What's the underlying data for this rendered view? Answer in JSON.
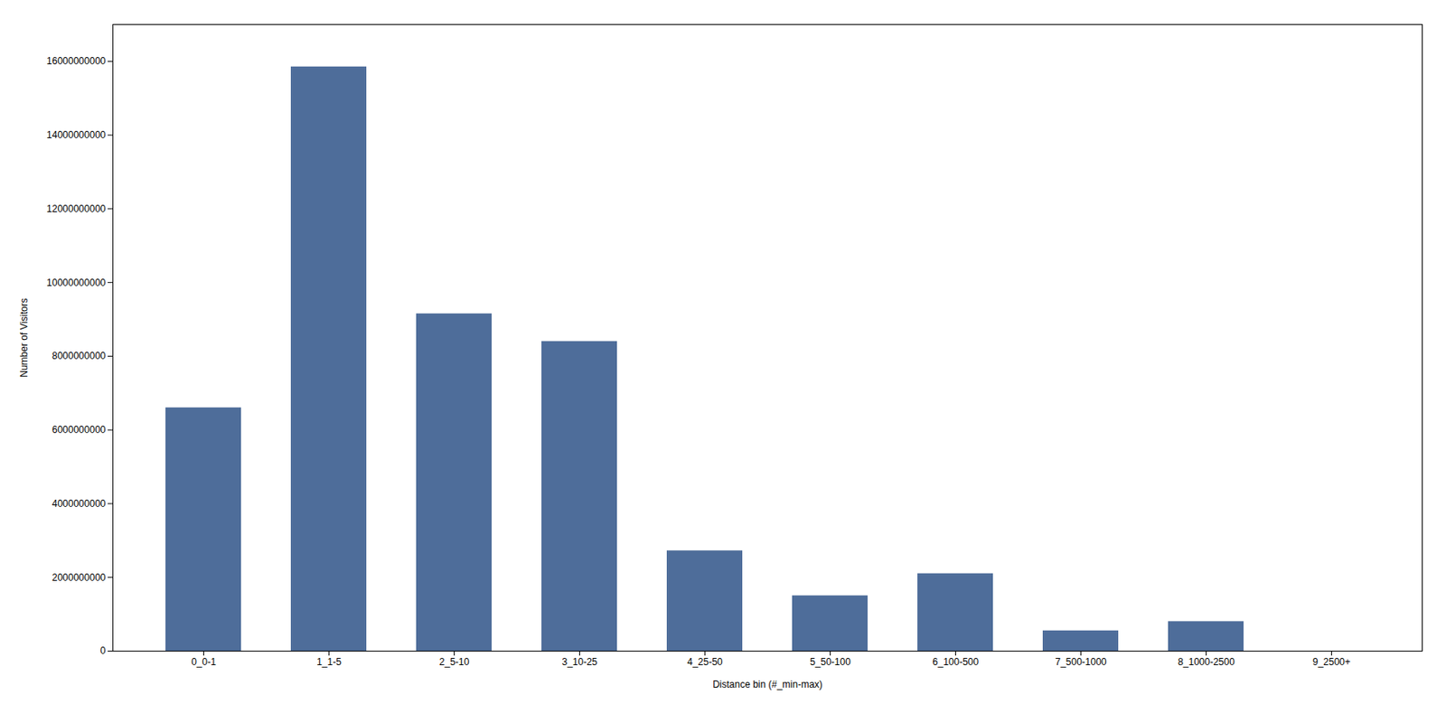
{
  "chart_data": {
    "type": "bar",
    "categories": [
      "0_0-1",
      "1_1-5",
      "2_5-10",
      "3_10-25",
      "4_25-50",
      "5_50-100",
      "6_100-500",
      "7_500-1000",
      "8_1000-2500",
      "9_2500+"
    ],
    "values": [
      6600000000,
      15850000000,
      9150000000,
      8400000000,
      2720000000,
      1500000000,
      2100000000,
      550000000,
      800000000,
      0
    ],
    "color": "#4e6d9a",
    "xlabel": "Distance bin (#_min-max)",
    "ylabel": "Number of Visitors",
    "ylim": [
      0,
      17000000000
    ],
    "yticks": [
      0,
      2000000000,
      4000000000,
      6000000000,
      8000000000,
      10000000000,
      12000000000,
      14000000000,
      16000000000
    ],
    "grid": false
  }
}
